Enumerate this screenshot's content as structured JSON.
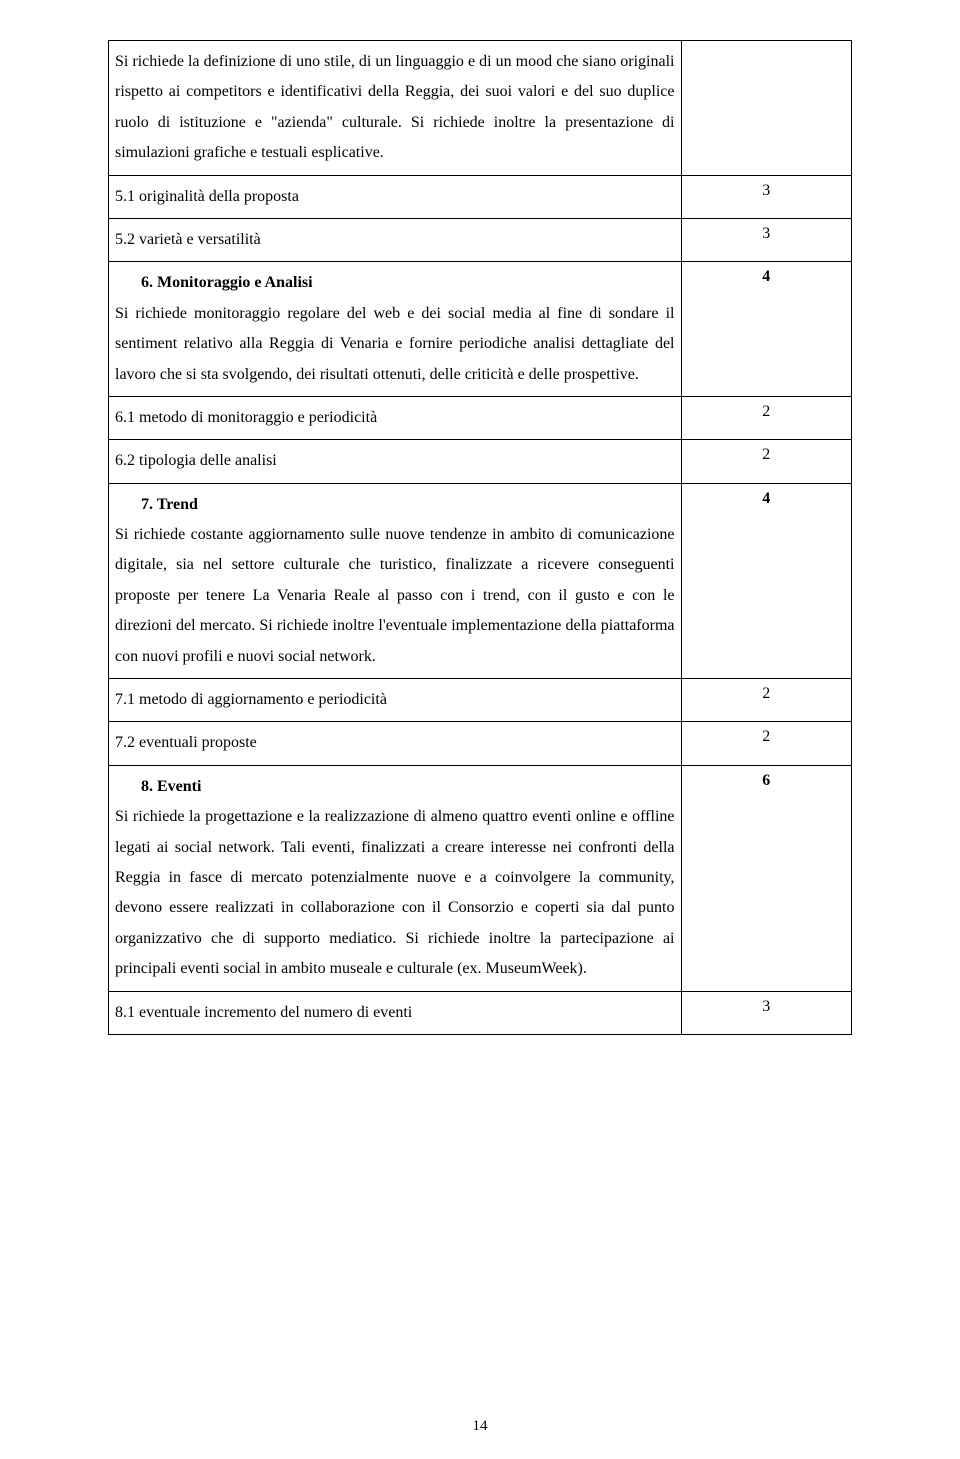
{
  "rows": [
    {
      "left_html": "<span class='body-text'>Si richiede la definizione di uno stile, di un linguaggio e di un mood che siano originali rispetto ai competitors e identificativi della Reggia, dei suoi valori e del suo duplice ruolo di istituzione e \"azienda\" culturale. Si richiede inoltre la presentazione di simulazioni grafiche e testuali esplicative.</span>",
      "right": ""
    },
    {
      "left_html": "5.1 originalità della proposta",
      "right": "3"
    },
    {
      "left_html": "5.2 varietà e versatilità",
      "right": "3"
    },
    {
      "left_html": "<span class='section-title'>6. Monitoraggio e Analisi</span><br><span class='body-text'>Si richiede monitoraggio regolare del web e dei social media al fine di sondare il sentiment relativo alla Reggia di Venaria e fornire periodiche analisi dettagliate del lavoro che si sta svolgendo, dei risultati ottenuti, delle criticità e delle prospettive.</span>",
      "right": "4",
      "right_bold": true
    },
    {
      "left_html": "6.1 metodo di monitoraggio e periodicità",
      "right": "2"
    },
    {
      "left_html": "6.2 tipologia delle analisi",
      "right": "2"
    },
    {
      "left_html": "<span class='section-title'>7. Trend</span><br><span class='body-text'>Si richiede costante aggiornamento sulle nuove tendenze in ambito di comunicazione digitale, sia nel settore culturale che turistico, finalizzate a ricevere conseguenti proposte per tenere La Venaria Reale al passo con i trend, con il gusto e con le direzioni del mercato. Si richiede inoltre l'eventuale implementazione della piattaforma con nuovi profili e nuovi social network.</span>",
      "right": "4",
      "right_bold": true
    },
    {
      "left_html": "7.1 metodo di aggiornamento e periodicità",
      "right": "2"
    },
    {
      "left_html": "7.2 eventuali proposte",
      "right": "2"
    },
    {
      "left_html": "<span class='section-title'>8. Eventi</span><br><span class='body-text'>Si richiede la progettazione e la realizzazione di almeno quattro eventi online e offline legati ai social network. Tali eventi, finalizzati a creare interesse nei confronti della Reggia in fasce di mercato potenzialmente nuove e a coinvolgere la community, devono essere realizzati in collaborazione con il Consorzio e coperti sia dal punto organizzativo che di supporto mediatico. Si richiede inoltre la partecipazione ai principali eventi social in ambito museale e culturale (ex. MuseumWeek).</span>",
      "right": "6",
      "right_bold": true
    },
    {
      "left_html": "8.1 eventuale incremento del numero di eventi",
      "right": "3"
    }
  ],
  "page_number": "14"
}
